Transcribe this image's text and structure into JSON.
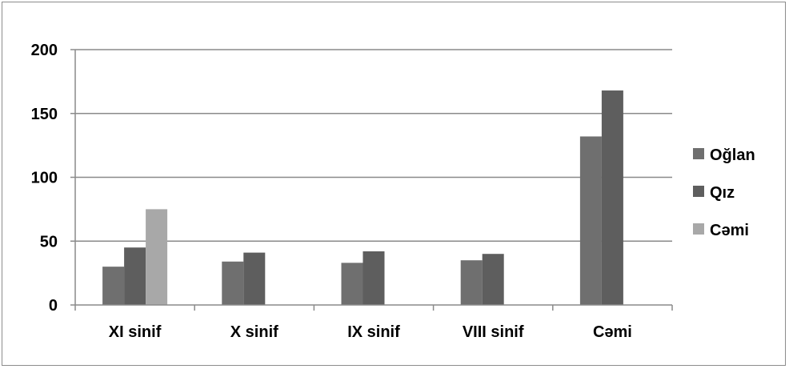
{
  "chart_data": {
    "type": "bar",
    "title": "",
    "xlabel": "",
    "ylabel": "",
    "categories": [
      "XI sinif",
      "X sinif",
      "IX sinif",
      "VIII sinif",
      "Cəmi"
    ],
    "series": [
      {
        "name": "Oğlan",
        "color": "#6f6f6f",
        "values": [
          30,
          34,
          33,
          35,
          132
        ]
      },
      {
        "name": "Qız",
        "color": "#5e5e5e",
        "values": [
          45,
          41,
          42,
          40,
          168
        ]
      },
      {
        "name": "Cəmi",
        "color": "#a8a8a8",
        "values": [
          75,
          null,
          null,
          null,
          null
        ]
      }
    ],
    "yticks": [
      "0",
      "50",
      "100",
      "150",
      "200"
    ],
    "ylim": [
      0,
      200
    ],
    "grid": true,
    "legend": "right"
  }
}
